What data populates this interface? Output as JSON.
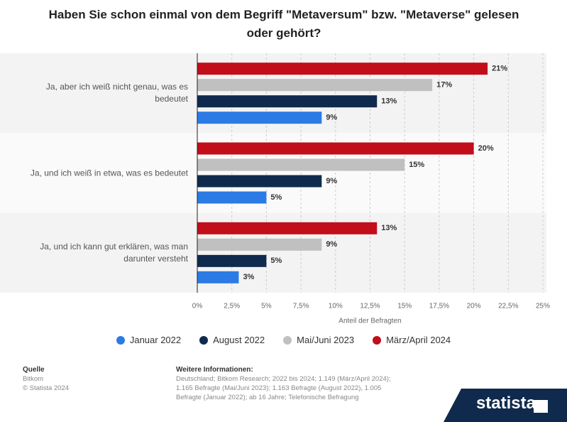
{
  "chart_data": {
    "type": "hbar",
    "title": "Haben Sie schon einmal von dem Begriff \"Metaversum\" bzw. \"Metaverse\" gelesen oder gehört?",
    "categories": [
      "Ja, aber ich weiß nicht genau, was es bedeutet",
      "Ja, und ich weiß in etwa, was es bedeutet",
      "Ja, und ich kann gut erklären, was man darunter versteht"
    ],
    "series": [
      {
        "name": "Januar 2022",
        "color": "#2c7be5",
        "values": [
          9,
          5,
          3
        ],
        "value_labels": [
          "9%",
          "5%",
          "3%"
        ]
      },
      {
        "name": "August 2022",
        "color": "#0f2a4d",
        "values": [
          13,
          9,
          5
        ],
        "value_labels": [
          "13%",
          "9%",
          "5%"
        ]
      },
      {
        "name": "Mai/Juni 2023",
        "color": "#c0c0c0",
        "values": [
          17,
          15,
          9
        ],
        "value_labels": [
          "17%",
          "15%",
          "9%"
        ]
      },
      {
        "name": "März/April 2024",
        "color": "#c20e1a",
        "values": [
          21,
          20,
          13
        ],
        "value_labels": [
          "21%",
          "20%",
          "13%"
        ]
      }
    ],
    "x_label": "Anteil der Befragten",
    "xlim": [
      0,
      25
    ],
    "xticks": [
      {
        "value": 0,
        "label": "0%"
      },
      {
        "value": 2.5,
        "label": "2,5%"
      },
      {
        "value": 5,
        "label": "5%"
      },
      {
        "value": 7.5,
        "label": "7,5%"
      },
      {
        "value": 10,
        "label": "10%"
      },
      {
        "value": 12.5,
        "label": "12,5%"
      },
      {
        "value": 15,
        "label": "15%"
      },
      {
        "value": 17.5,
        "label": "17,5%"
      },
      {
        "value": 20,
        "label": "20%"
      },
      {
        "value": 22.5,
        "label": "22,5%"
      },
      {
        "value": 25,
        "label": "25%"
      }
    ],
    "grid": true,
    "legend": "bottom"
  },
  "source": {
    "heading": "Quelle",
    "lines": [
      "Bitkom",
      "© Statista 2024"
    ]
  },
  "info": {
    "heading": "Weitere Informationen:",
    "text": "Deutschland; Bitkom Research; 2022 bis 2024; 1.149 (März/April 2024); 1.165 Befragte (Mai/Juni 2023); 1.163 Befragte (August 2022), 1.005 Befragte (Januar 2022); ab 16 Jahre; Telefonische Befragung"
  },
  "logo": "statista"
}
